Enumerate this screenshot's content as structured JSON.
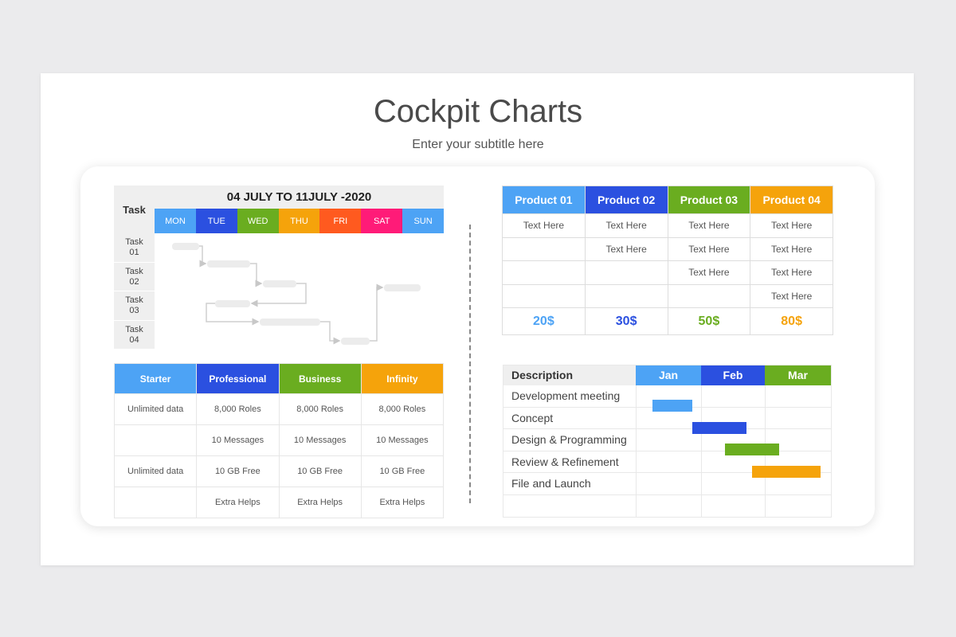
{
  "page": {
    "title": "Cockpit Charts",
    "subtitle": "Enter your subtitle here"
  },
  "colors": {
    "light_blue": "#4da3f5",
    "blue": "#2b50e0",
    "green": "#6aad20",
    "orange": "#f5a30b",
    "red_orange": "#ff5a1f",
    "magenta": "#ff1b78",
    "grey_bg": "#efefef"
  },
  "schedule": {
    "task_header": "Task",
    "date_range": "04 JULY TO 11JULY -2020",
    "days": [
      {
        "label": "MON",
        "color": "#4da3f5"
      },
      {
        "label": "TUE",
        "color": "#2b50e0"
      },
      {
        "label": "WED",
        "color": "#6aad20"
      },
      {
        "label": "THU",
        "color": "#f5a30b"
      },
      {
        "label": "FRI",
        "color": "#ff5a1f"
      },
      {
        "label": "SAT",
        "color": "#ff1b78"
      },
      {
        "label": "SUN",
        "color": "#4da3f5"
      }
    ],
    "tasks": [
      {
        "label": "Task",
        "num": "01"
      },
      {
        "label": "Task",
        "num": "02"
      },
      {
        "label": "Task",
        "num": "03"
      },
      {
        "label": "Task",
        "num": "04"
      }
    ]
  },
  "plans": {
    "headers": [
      {
        "label": "Starter",
        "color": "#4da3f5"
      },
      {
        "label": "Professional",
        "color": "#2b50e0"
      },
      {
        "label": "Business",
        "color": "#6aad20"
      },
      {
        "label": "Infinity",
        "color": "#f5a30b"
      }
    ],
    "rows": [
      [
        "Unlimited data",
        "8,000 Roles",
        "8,000 Roles",
        "8,000 Roles"
      ],
      [
        "",
        "10 Messages",
        "10 Messages",
        "10 Messages"
      ],
      [
        "Unlimited data",
        "10 GB Free",
        "10 GB Free",
        "10 GB Free"
      ],
      [
        "",
        "Extra Helps",
        "Extra Helps",
        "Extra Helps"
      ]
    ]
  },
  "products": {
    "headers": [
      {
        "label": "Product 01",
        "color": "#4da3f5"
      },
      {
        "label": "Product 02",
        "color": "#2b50e0"
      },
      {
        "label": "Product 03",
        "color": "#6aad20"
      },
      {
        "label": "Product 04",
        "color": "#f5a30b"
      }
    ],
    "rows": [
      [
        "Text Here",
        "Text Here",
        "Text Here",
        "Text Here"
      ],
      [
        "",
        "Text Here",
        "Text Here",
        "Text Here"
      ],
      [
        "",
        "",
        "Text Here",
        "Text Here"
      ],
      [
        "",
        "",
        "",
        "Text Here"
      ]
    ],
    "prices": [
      "20$",
      "30$",
      "50$",
      "80$"
    ]
  },
  "gantt": {
    "header": "Description",
    "months": [
      {
        "label": "Jan",
        "color": "#4da3f5"
      },
      {
        "label": "Feb",
        "color": "#2b50e0"
      },
      {
        "label": "Mar",
        "color": "#6aad20"
      }
    ],
    "tasks": [
      {
        "label": "Development meeting",
        "start": 0.25,
        "end": 0.87,
        "color": "#4da3f5"
      },
      {
        "label": "Concept",
        "start": 0.87,
        "end": 1.69,
        "color": "#2b50e0"
      },
      {
        "label": "Design & Programming",
        "start": 1.37,
        "end": 2.19,
        "color": "#6aad20"
      },
      {
        "label": "Review & Refinement",
        "start": 1.78,
        "end": 2.83,
        "color": "#f5a30b"
      },
      {
        "label": "File and Launch",
        "start": null,
        "end": null,
        "color": null
      }
    ]
  }
}
